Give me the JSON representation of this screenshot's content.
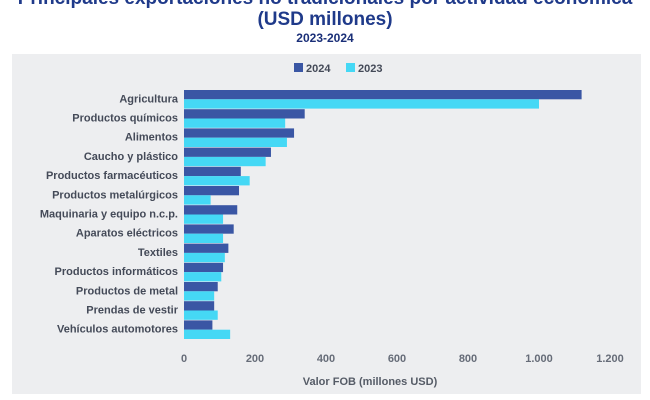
{
  "header": {
    "title_line1": "Principales exportaciones no tradicionales por actividad económica",
    "title_line2": "(USD millones)",
    "subtitle": "2023-2024"
  },
  "colors": {
    "title": "#1f3a8a",
    "series_2024": "#3a56a4",
    "series_2023": "#45d8f5",
    "panel_bg": "#edeef0"
  },
  "chart_data": {
    "type": "bar",
    "orientation": "horizontal",
    "title": "Principales exportaciones no tradicionales por actividad económica (USD millones)",
    "subtitle": "2023-2024",
    "categories": [
      "Agricultura",
      "Productos químicos",
      "Alimentos",
      "Caucho y plástico",
      "Productos farmacéuticos",
      "Productos metalúrgicos",
      "Maquinaria y equipo n.c.p.",
      "Aparatos eléctricos",
      "Textiles",
      "Productos informáticos",
      "Productos de metal",
      "Prendas de vestir",
      "Vehículos automotores"
    ],
    "series": [
      {
        "name": "2024",
        "values": [
          1120,
          340,
          310,
          245,
          160,
          155,
          150,
          140,
          125,
          110,
          95,
          85,
          80
        ]
      },
      {
        "name": "2023",
        "values": [
          1000,
          285,
          290,
          230,
          185,
          75,
          110,
          110,
          115,
          105,
          85,
          95,
          130
        ]
      }
    ],
    "xlabel": "Valor FOB (millones USD)",
    "xlim": [
      0,
      1200
    ],
    "xticks": [
      0,
      200,
      400,
      600,
      800,
      1000,
      1200
    ],
    "xtick_labels": [
      "0",
      "200",
      "400",
      "600",
      "800",
      "1.000",
      "1.200"
    ],
    "legend": "top-center",
    "grid": false
  }
}
